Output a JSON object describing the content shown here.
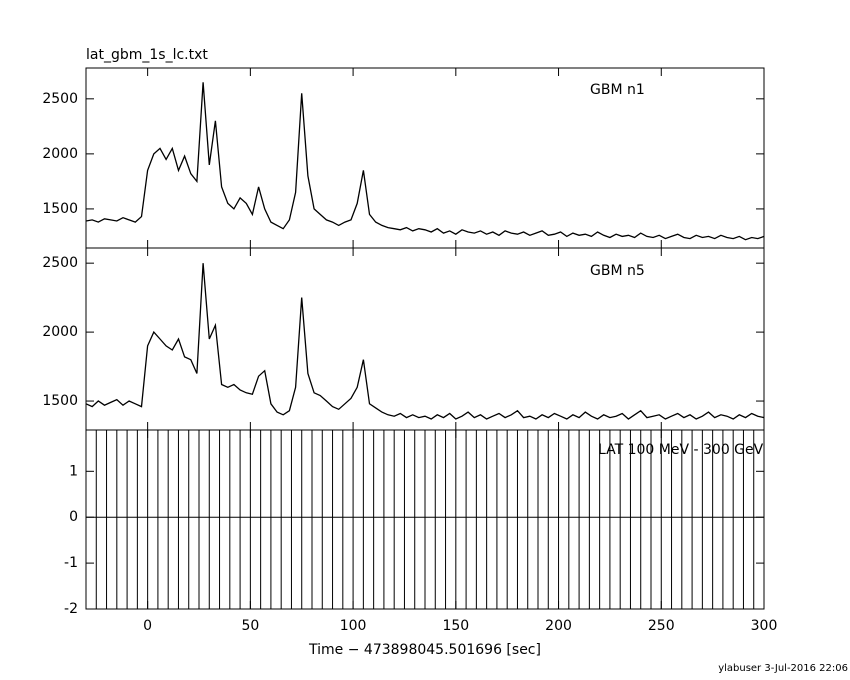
{
  "chart_data": [
    {
      "type": "line",
      "title": "lat_gbm_1s_lc.txt",
      "annotation": "GBM n1",
      "color": "#000000",
      "xlim": [
        -30,
        300
      ],
      "ylim": [
        1145,
        2780
      ],
      "yticks": [
        1500,
        2000,
        2500
      ],
      "x": [
        -30,
        -27,
        -24,
        -21,
        -18,
        -15,
        -12,
        -9,
        -6,
        -3,
        0,
        3,
        6,
        9,
        12,
        15,
        18,
        21,
        24,
        27,
        30,
        33,
        36,
        39,
        42,
        45,
        48,
        51,
        54,
        57,
        60,
        63,
        66,
        69,
        72,
        75,
        78,
        81,
        84,
        87,
        90,
        93,
        96,
        99,
        102,
        105,
        108,
        111,
        114,
        117,
        120,
        123,
        126,
        129,
        132,
        135,
        138,
        141,
        144,
        147,
        150,
        153,
        156,
        159,
        162,
        165,
        168,
        171,
        174,
        177,
        180,
        183,
        186,
        189,
        192,
        195,
        198,
        201,
        204,
        207,
        210,
        213,
        216,
        219,
        222,
        225,
        228,
        231,
        234,
        237,
        240,
        243,
        246,
        249,
        252,
        255,
        258,
        261,
        264,
        267,
        270,
        273,
        276,
        279,
        282,
        285,
        288,
        291,
        294,
        297,
        300
      ],
      "values": [
        1390,
        1400,
        1380,
        1410,
        1400,
        1390,
        1420,
        1400,
        1380,
        1430,
        1850,
        2000,
        2050,
        1950,
        2050,
        1850,
        1980,
        1820,
        1750,
        2650,
        1900,
        2300,
        1700,
        1550,
        1500,
        1600,
        1550,
        1450,
        1700,
        1500,
        1380,
        1350,
        1320,
        1400,
        1650,
        2550,
        1800,
        1500,
        1450,
        1400,
        1380,
        1350,
        1380,
        1400,
        1550,
        1850,
        1450,
        1380,
        1350,
        1330,
        1320,
        1310,
        1330,
        1300,
        1320,
        1310,
        1290,
        1320,
        1280,
        1300,
        1270,
        1310,
        1290,
        1280,
        1300,
        1270,
        1290,
        1260,
        1300,
        1280,
        1270,
        1290,
        1260,
        1280,
        1300,
        1260,
        1270,
        1290,
        1250,
        1280,
        1260,
        1270,
        1250,
        1290,
        1260,
        1240,
        1270,
        1250,
        1260,
        1240,
        1280,
        1250,
        1240,
        1260,
        1230,
        1250,
        1270,
        1240,
        1230,
        1260,
        1240,
        1250,
        1230,
        1260,
        1240,
        1230,
        1250,
        1220,
        1240,
        1230,
        1250
      ]
    },
    {
      "type": "line",
      "annotation": "GBM n5",
      "color": "#000000",
      "xlim": [
        -30,
        300
      ],
      "ylim": [
        1290,
        2610
      ],
      "yticks": [
        1500,
        2000,
        2500
      ],
      "x": [
        -30,
        -27,
        -24,
        -21,
        -18,
        -15,
        -12,
        -9,
        -6,
        -3,
        0,
        3,
        6,
        9,
        12,
        15,
        18,
        21,
        24,
        27,
        30,
        33,
        36,
        39,
        42,
        45,
        48,
        51,
        54,
        57,
        60,
        63,
        66,
        69,
        72,
        75,
        78,
        81,
        84,
        87,
        90,
        93,
        96,
        99,
        102,
        105,
        108,
        111,
        114,
        117,
        120,
        123,
        126,
        129,
        132,
        135,
        138,
        141,
        144,
        147,
        150,
        153,
        156,
        159,
        162,
        165,
        168,
        171,
        174,
        177,
        180,
        183,
        186,
        189,
        192,
        195,
        198,
        201,
        204,
        207,
        210,
        213,
        216,
        219,
        222,
        225,
        228,
        231,
        234,
        237,
        240,
        243,
        246,
        249,
        252,
        255,
        258,
        261,
        264,
        267,
        270,
        273,
        276,
        279,
        282,
        285,
        288,
        291,
        294,
        297,
        300
      ],
      "values": [
        1480,
        1460,
        1500,
        1470,
        1490,
        1510,
        1470,
        1500,
        1480,
        1460,
        1900,
        2000,
        1950,
        1900,
        1870,
        1950,
        1820,
        1800,
        1700,
        2500,
        1950,
        2050,
        1620,
        1600,
        1620,
        1580,
        1560,
        1550,
        1680,
        1720,
        1480,
        1420,
        1400,
        1430,
        1600,
        2250,
        1700,
        1560,
        1540,
        1500,
        1460,
        1440,
        1480,
        1520,
        1600,
        1800,
        1480,
        1450,
        1420,
        1400,
        1390,
        1410,
        1380,
        1400,
        1380,
        1390,
        1370,
        1400,
        1380,
        1410,
        1370,
        1390,
        1420,
        1380,
        1400,
        1370,
        1390,
        1410,
        1380,
        1400,
        1430,
        1380,
        1390,
        1370,
        1400,
        1380,
        1410,
        1390,
        1370,
        1400,
        1380,
        1420,
        1390,
        1370,
        1400,
        1380,
        1390,
        1410,
        1370,
        1400,
        1430,
        1380,
        1390,
        1400,
        1370,
        1390,
        1410,
        1380,
        1400,
        1370,
        1390,
        1420,
        1380,
        1400,
        1390,
        1370,
        1400,
        1380,
        1410,
        1390,
        1380
      ]
    },
    {
      "type": "errorbar",
      "annotation": "LAT 100 MeV - 300 GeV",
      "color": "#000000",
      "xlim": [
        -30,
        300
      ],
      "ylim": [
        -2,
        1.9
      ],
      "yticks": [
        -2,
        -1,
        0,
        1
      ],
      "xticks": [
        0,
        50,
        100,
        150,
        200,
        250,
        300
      ],
      "xlabel": "Time − 473898045.501696 [sec]",
      "x": [
        -30,
        -25,
        -20,
        -15,
        -10,
        -5,
        0,
        5,
        10,
        15,
        20,
        25,
        30,
        35,
        40,
        45,
        50,
        55,
        60,
        65,
        70,
        75,
        80,
        85,
        90,
        95,
        100,
        105,
        110,
        115,
        120,
        125,
        130,
        135,
        140,
        145,
        150,
        155,
        160,
        165,
        170,
        175,
        180,
        185,
        190,
        195,
        200,
        205,
        210,
        215,
        220,
        225,
        230,
        235,
        240,
        245,
        250,
        255,
        260,
        265,
        270,
        275,
        280,
        285,
        290,
        295,
        300
      ],
      "values": [
        0,
        0,
        0,
        0,
        0,
        0,
        0,
        0,
        0,
        0,
        0,
        0,
        0,
        0,
        0,
        0,
        0,
        0,
        0,
        0,
        0,
        0,
        0,
        0,
        0,
        0,
        0,
        0,
        0,
        0,
        0,
        0,
        0,
        0,
        0,
        0,
        0,
        0,
        0,
        0,
        0,
        0,
        0,
        0,
        0,
        0,
        0,
        0,
        0,
        0,
        0,
        0,
        0,
        0,
        0,
        0,
        0,
        0,
        0,
        0,
        0,
        0,
        0,
        0,
        0,
        0,
        0
      ],
      "errors": [
        2,
        2,
        2,
        2,
        2,
        2,
        2,
        2,
        2,
        2,
        2,
        2,
        2,
        2,
        2,
        2,
        2,
        2,
        2,
        2,
        2,
        2,
        2,
        2,
        2,
        2,
        2,
        2,
        2,
        2,
        2,
        2,
        2,
        2,
        2,
        2,
        2,
        2,
        2,
        2,
        2,
        2,
        2,
        2,
        2,
        2,
        2,
        2,
        2,
        2,
        2,
        2,
        2,
        2,
        2,
        2,
        2,
        2,
        2,
        2,
        2,
        2,
        2,
        2,
        2,
        2,
        2
      ]
    }
  ],
  "footer": "ylabuser  3-Jul-2016 22:06"
}
